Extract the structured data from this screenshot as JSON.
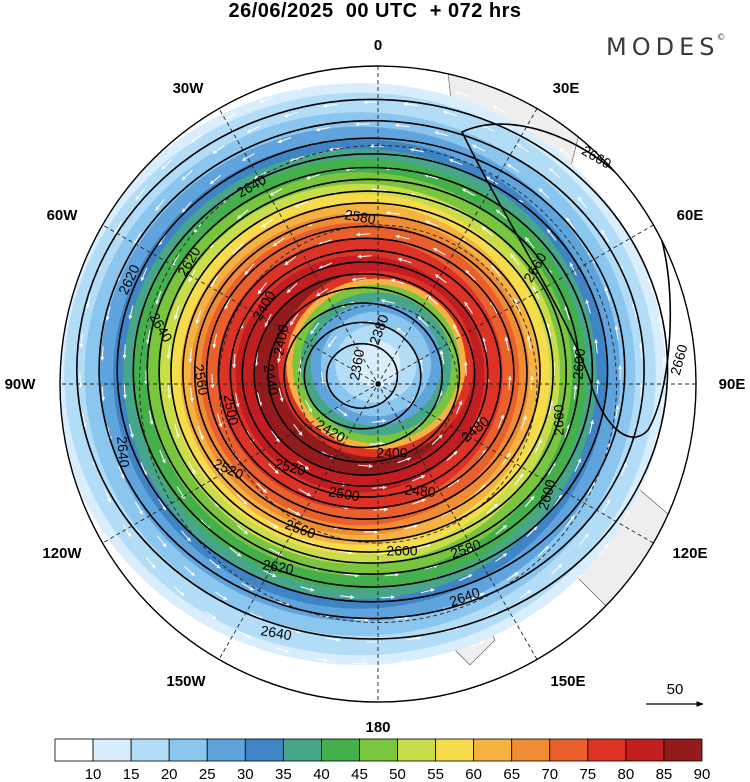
{
  "title": "26/06/2025  00 UTC  + 072 hrs",
  "brand": "MODES",
  "brand_mark": "©",
  "longitudes": [
    {
      "id": "0",
      "label": "0"
    },
    {
      "id": "30E",
      "label": "30E"
    },
    {
      "id": "60E",
      "label": "60E"
    },
    {
      "id": "90E",
      "label": "90E"
    },
    {
      "id": "120E",
      "label": "120E"
    },
    {
      "id": "150E",
      "label": "150E"
    },
    {
      "id": "180",
      "label": "180"
    },
    {
      "id": "150W",
      "label": "150W"
    },
    {
      "id": "120W",
      "label": "120W"
    },
    {
      "id": "90W",
      "label": "90W"
    },
    {
      "id": "60W",
      "label": "60W"
    },
    {
      "id": "30W",
      "label": "30W"
    }
  ],
  "contour_labels": [
    "2380",
    "2360",
    "2400",
    "2420",
    "2440",
    "2480",
    "2500",
    "2520",
    "2560",
    "2580",
    "2600",
    "2620",
    "2640",
    "2660"
  ],
  "reference_vector": {
    "label": "50"
  },
  "colorbar": {
    "ticks": [
      "10",
      "15",
      "20",
      "25",
      "30",
      "35",
      "40",
      "45",
      "50",
      "55",
      "60",
      "65",
      "70",
      "75",
      "80",
      "85",
      "90"
    ],
    "colors": [
      "#ffffff",
      "#d8eefc",
      "#b3dcf6",
      "#8bc6ee",
      "#5fa4dc",
      "#3f85c6",
      "#47a68a",
      "#44b04c",
      "#7ac53e",
      "#c9dc4a",
      "#f6dc4a",
      "#f6b240",
      "#f08c34",
      "#e9602c",
      "#dc3326",
      "#c21e22",
      "#941b1c"
    ]
  },
  "colors": {
    "contour": "#000000",
    "grid": "#222222",
    "land": "#eeeeee",
    "vectors": "#ffffff"
  }
}
